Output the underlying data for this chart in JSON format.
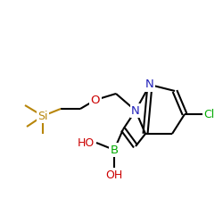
{
  "bg_color": "#ffffff",
  "atom_colors": {
    "N": "#2222bb",
    "O": "#cc0000",
    "B": "#00aa00",
    "Cl": "#00aa00",
    "Si": "#b8860b",
    "C": "#000000",
    "HO": "#cc0000"
  },
  "bond_color": "#000000",
  "si_bond_color": "#b8860b",
  "lw": 1.5,
  "lw_si": 1.5
}
